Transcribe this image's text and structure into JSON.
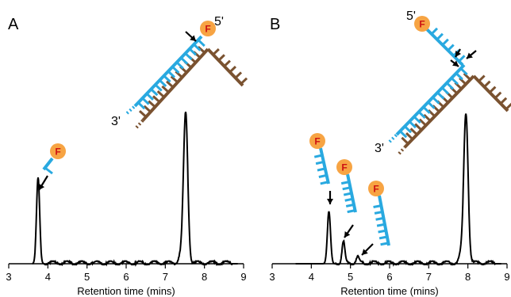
{
  "colors": {
    "probe": "#29a9e0",
    "target": "#7a5230",
    "fluorophore": "#f7a443",
    "fluorophore_text": "#cc1111",
    "trace": "#000000"
  },
  "labels": {
    "fluorophore": "F",
    "five_prime": "5'",
    "three_prime": "3'"
  },
  "chart_data": [
    {
      "panel": "A",
      "type": "line",
      "xlabel": "Retention time (mins)",
      "ylabel": "",
      "xlim": [
        3,
        9
      ],
      "xticks": [
        3,
        4,
        5,
        6,
        7,
        8,
        9
      ],
      "y_axis_shown": false,
      "grid": false,
      "series": [
        {
          "peaks": [
            {
              "x": 3.75,
              "y": 0.58,
              "label": "cleaved fluorophore fragment"
            },
            {
              "x": 7.52,
              "y": 1.0,
              "label": "intact probe duplex"
            }
          ]
        }
      ]
    },
    {
      "panel": "B",
      "type": "line",
      "xlabel": "Retention time (mins)",
      "ylabel": "",
      "xlim": [
        3,
        9
      ],
      "xticks": [
        3,
        4,
        5,
        6,
        7,
        8,
        9
      ],
      "y_axis_shown": false,
      "grid": false,
      "series": [
        {
          "peaks": [
            {
              "x": 4.45,
              "y": 0.35,
              "label": "short fragment"
            },
            {
              "x": 4.82,
              "y": 0.14,
              "label": "medium fragment"
            },
            {
              "x": 5.18,
              "y": 0.04,
              "label": "long fragment"
            },
            {
              "x": 7.95,
              "y": 1.0,
              "label": "intact probe duplex"
            }
          ]
        }
      ]
    }
  ]
}
